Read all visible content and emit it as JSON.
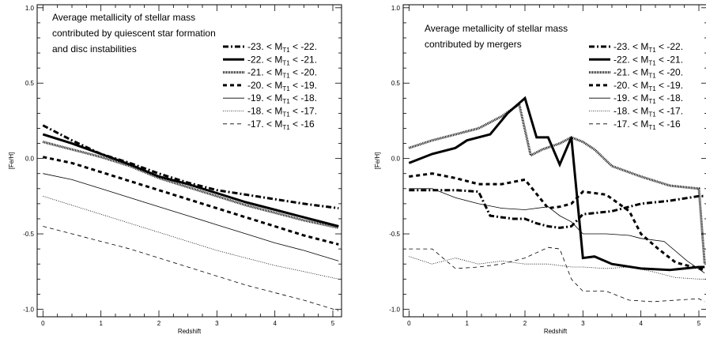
{
  "chart_data": [
    {
      "type": "line",
      "title_lines": [
        "Average metallicity of stellar mass",
        "contributed by quiescent star formation",
        "and disc instabilities"
      ],
      "xlabel": "Redshift",
      "ylabel": "[Fe/H]",
      "xlim": [
        -0.1,
        5.15
      ],
      "ylim": [
        -1.05,
        1.02
      ],
      "xticks": [
        0,
        1,
        2,
        3,
        4,
        5
      ],
      "yticks": [
        -1.0,
        -0.5,
        0.0,
        0.5,
        1.0
      ],
      "ytick_labels": [
        "-1.0",
        "-0.5",
        "0.0",
        "0.5",
        "1.0"
      ],
      "grid": false,
      "legend_position": "upper-right",
      "series": [
        {
          "name": "-23. < M_T1 < -22.",
          "name_main": "-23. < M",
          "name_sub": "T1",
          "name_tail": " < -22.",
          "style": "dashdot",
          "x": [
            0,
            0.5,
            1,
            1.5,
            2,
            2.5,
            3,
            3.5,
            4,
            4.5,
            5.1
          ],
          "y": [
            0.22,
            0.12,
            0.03,
            -0.03,
            -0.1,
            -0.16,
            -0.21,
            -0.24,
            -0.27,
            -0.3,
            -0.33
          ]
        },
        {
          "name": "-22. < M_T1 < -21.",
          "name_main": "-22. < M",
          "name_sub": "T1",
          "name_tail": " < -21.",
          "style": "thick",
          "x": [
            0,
            0.5,
            1,
            1.5,
            2,
            2.5,
            3,
            3.5,
            4,
            4.5,
            5.1
          ],
          "y": [
            0.16,
            0.1,
            0.03,
            -0.04,
            -0.12,
            -0.17,
            -0.23,
            -0.29,
            -0.34,
            -0.39,
            -0.45
          ]
        },
        {
          "name": "-21. < M_T1 < -20.",
          "name_main": "-21. < M",
          "name_sub": "T1",
          "name_tail": " < -20.",
          "style": "dotted-thick",
          "x": [
            0,
            0.5,
            1,
            1.5,
            2,
            2.5,
            3,
            3.5,
            4,
            4.5,
            5.1
          ],
          "y": [
            0.11,
            0.06,
            0.01,
            -0.05,
            -0.13,
            -0.19,
            -0.25,
            -0.31,
            -0.36,
            -0.41,
            -0.46
          ]
        },
        {
          "name": "-20. < M_T1 < -19.",
          "name_main": "-20. < M",
          "name_sub": "T1",
          "name_tail": " < -19.",
          "style": "dashed-thick",
          "x": [
            0,
            0.5,
            1,
            1.5,
            2,
            2.5,
            3,
            3.5,
            4,
            4.5,
            5.1
          ],
          "y": [
            0.01,
            -0.03,
            -0.09,
            -0.15,
            -0.21,
            -0.27,
            -0.33,
            -0.39,
            -0.45,
            -0.51,
            -0.57
          ]
        },
        {
          "name": "-19. < M_T1 < -18.",
          "name_main": "-19. < M",
          "name_sub": "T1",
          "name_tail": " < -18.",
          "style": "thin",
          "x": [
            0,
            0.5,
            1,
            1.5,
            2,
            2.5,
            3,
            3.5,
            4,
            4.5,
            5.1
          ],
          "y": [
            -0.1,
            -0.14,
            -0.2,
            -0.26,
            -0.32,
            -0.38,
            -0.44,
            -0.5,
            -0.56,
            -0.61,
            -0.68
          ]
        },
        {
          "name": "-18. < M_T1 < -17.",
          "name_main": "-18. < M",
          "name_sub": "T1",
          "name_tail": " < -17.",
          "style": "dotted-thin",
          "x": [
            0,
            0.5,
            1,
            1.5,
            2,
            2.5,
            3,
            3.5,
            4,
            4.5,
            5.1
          ],
          "y": [
            -0.25,
            -0.31,
            -0.37,
            -0.43,
            -0.49,
            -0.55,
            -0.61,
            -0.66,
            -0.71,
            -0.75,
            -0.8
          ]
        },
        {
          "name": "-17. < M_T1 < -16",
          "name_main": "-17. < M",
          "name_sub": "T1",
          "name_tail": " < -16",
          "style": "dashed-thin",
          "x": [
            0,
            0.5,
            1,
            1.5,
            2,
            2.5,
            3,
            3.5,
            4,
            4.5,
            5.1
          ],
          "y": [
            -0.45,
            -0.5,
            -0.55,
            -0.6,
            -0.66,
            -0.72,
            -0.78,
            -0.84,
            -0.89,
            -0.94,
            -1.01
          ]
        }
      ]
    },
    {
      "type": "line",
      "title_lines": [
        "Average metallicity of stellar mass",
        "contributed by mergers"
      ],
      "xlabel": "Redshift",
      "ylabel": "[Fe/H]",
      "xlim": [
        -0.1,
        5.15
      ],
      "ylim": [
        -1.05,
        1.02
      ],
      "xticks": [
        0,
        1,
        2,
        3,
        4,
        5
      ],
      "yticks": [
        -1.0,
        -0.5,
        0.0,
        0.5,
        1.0
      ],
      "ytick_labels": [
        "-1.0",
        "-0.5",
        "0.0",
        "0.5",
        "1.0"
      ],
      "grid": false,
      "legend_position": "upper-right",
      "series": [
        {
          "name": "-23. < M_T1 < -22.",
          "name_main": "-23. < M",
          "name_sub": "T1",
          "name_tail": " < -22.",
          "style": "dashdot",
          "x": [
            0,
            0.4,
            0.8,
            1.2,
            1.4,
            1.6,
            1.8,
            2.0,
            2.2,
            2.4,
            2.6,
            2.8,
            3.0,
            3.5,
            4.0,
            4.5,
            5.0,
            5.1
          ],
          "y": [
            -0.21,
            -0.21,
            -0.21,
            -0.22,
            -0.38,
            -0.39,
            -0.4,
            -0.4,
            -0.43,
            -0.45,
            -0.46,
            -0.45,
            -0.37,
            -0.35,
            -0.3,
            -0.28,
            -0.25,
            -0.25
          ]
        },
        {
          "name": "-22. < M_T1 < -21.",
          "name_main": "-22. < M",
          "name_sub": "T1",
          "name_tail": " < -21.",
          "style": "thick",
          "x": [
            0,
            0.4,
            0.8,
            1.0,
            1.4,
            1.7,
            2.0,
            2.2,
            2.4,
            2.6,
            2.8,
            3.0,
            3.2,
            3.5,
            4.0,
            4.5,
            5.0,
            5.1
          ],
          "y": [
            -0.03,
            0.03,
            0.07,
            0.12,
            0.16,
            0.3,
            0.4,
            0.14,
            0.14,
            -0.04,
            0.14,
            -0.66,
            -0.65,
            -0.7,
            -0.73,
            -0.74,
            -0.72,
            -0.72
          ]
        },
        {
          "name": "-21. < M_T1 < -20.",
          "name_main": "-21. < M",
          "name_sub": "T1",
          "name_tail": " < -20.",
          "style": "dotted-thick",
          "x": [
            0,
            0.4,
            0.8,
            1.2,
            1.6,
            1.9,
            2.1,
            2.3,
            2.6,
            2.8,
            3.0,
            3.2,
            3.5,
            4.0,
            4.5,
            5.0,
            5.1
          ],
          "y": [
            0.07,
            0.12,
            0.16,
            0.2,
            0.28,
            0.36,
            0.02,
            0.06,
            0.1,
            0.14,
            0.11,
            0.06,
            -0.05,
            -0.12,
            -0.18,
            -0.2,
            -0.7
          ]
        },
        {
          "name": "-20. < M_T1 < -19.",
          "name_main": "-20. < M",
          "name_sub": "T1",
          "name_tail": " < -19.",
          "style": "dashed-thick",
          "x": [
            0,
            0.4,
            0.8,
            1.2,
            1.6,
            2.0,
            2.4,
            2.6,
            2.8,
            3.0,
            3.4,
            3.8,
            4.0,
            4.3,
            4.6,
            5.0,
            5.1
          ],
          "y": [
            -0.12,
            -0.1,
            -0.13,
            -0.17,
            -0.17,
            -0.14,
            -0.33,
            -0.32,
            -0.3,
            -0.22,
            -0.24,
            -0.35,
            -0.5,
            -0.6,
            -0.69,
            -0.73,
            -0.74
          ]
        },
        {
          "name": "-19. < M_T1 < -18.",
          "name_main": "-19. < M",
          "name_sub": "T1",
          "name_tail": " < -18.",
          "style": "thin",
          "x": [
            0,
            0.4,
            0.8,
            1.2,
            1.6,
            2.0,
            2.4,
            2.6,
            2.8,
            3.0,
            3.4,
            3.8,
            4.0,
            4.4,
            4.8,
            5.1
          ],
          "y": [
            -0.2,
            -0.2,
            -0.26,
            -0.3,
            -0.33,
            -0.34,
            -0.32,
            -0.38,
            -0.42,
            -0.5,
            -0.5,
            -0.51,
            -0.53,
            -0.55,
            -0.68,
            -0.76
          ]
        },
        {
          "name": "-18. < M_T1 < -17.",
          "name_main": "-18. < M",
          "name_sub": "T1",
          "name_tail": " < -17.",
          "style": "dotted-thin",
          "x": [
            0,
            0.4,
            0.8,
            1.2,
            1.6,
            2.0,
            2.4,
            2.8,
            3.0,
            3.4,
            3.8,
            4.2,
            4.6,
            5.0,
            5.1
          ],
          "y": [
            -0.65,
            -0.7,
            -0.66,
            -0.7,
            -0.68,
            -0.7,
            -0.7,
            -0.72,
            -0.72,
            -0.73,
            -0.72,
            -0.75,
            -0.79,
            -0.8,
            -0.8
          ]
        },
        {
          "name": "-17. < M_T1 < -16",
          "name_main": "-17. < M",
          "name_sub": "T1",
          "name_tail": " < -16",
          "style": "dashed-thin",
          "x": [
            0,
            0.4,
            0.8,
            1.2,
            1.6,
            2.0,
            2.4,
            2.6,
            2.8,
            3.0,
            3.4,
            3.8,
            4.2,
            4.6,
            5.0,
            5.1
          ],
          "y": [
            -0.6,
            -0.6,
            -0.73,
            -0.72,
            -0.7,
            -0.66,
            -0.59,
            -0.6,
            -0.8,
            -0.88,
            -0.88,
            -0.94,
            -0.95,
            -0.94,
            -0.93,
            -0.95
          ]
        }
      ]
    }
  ]
}
